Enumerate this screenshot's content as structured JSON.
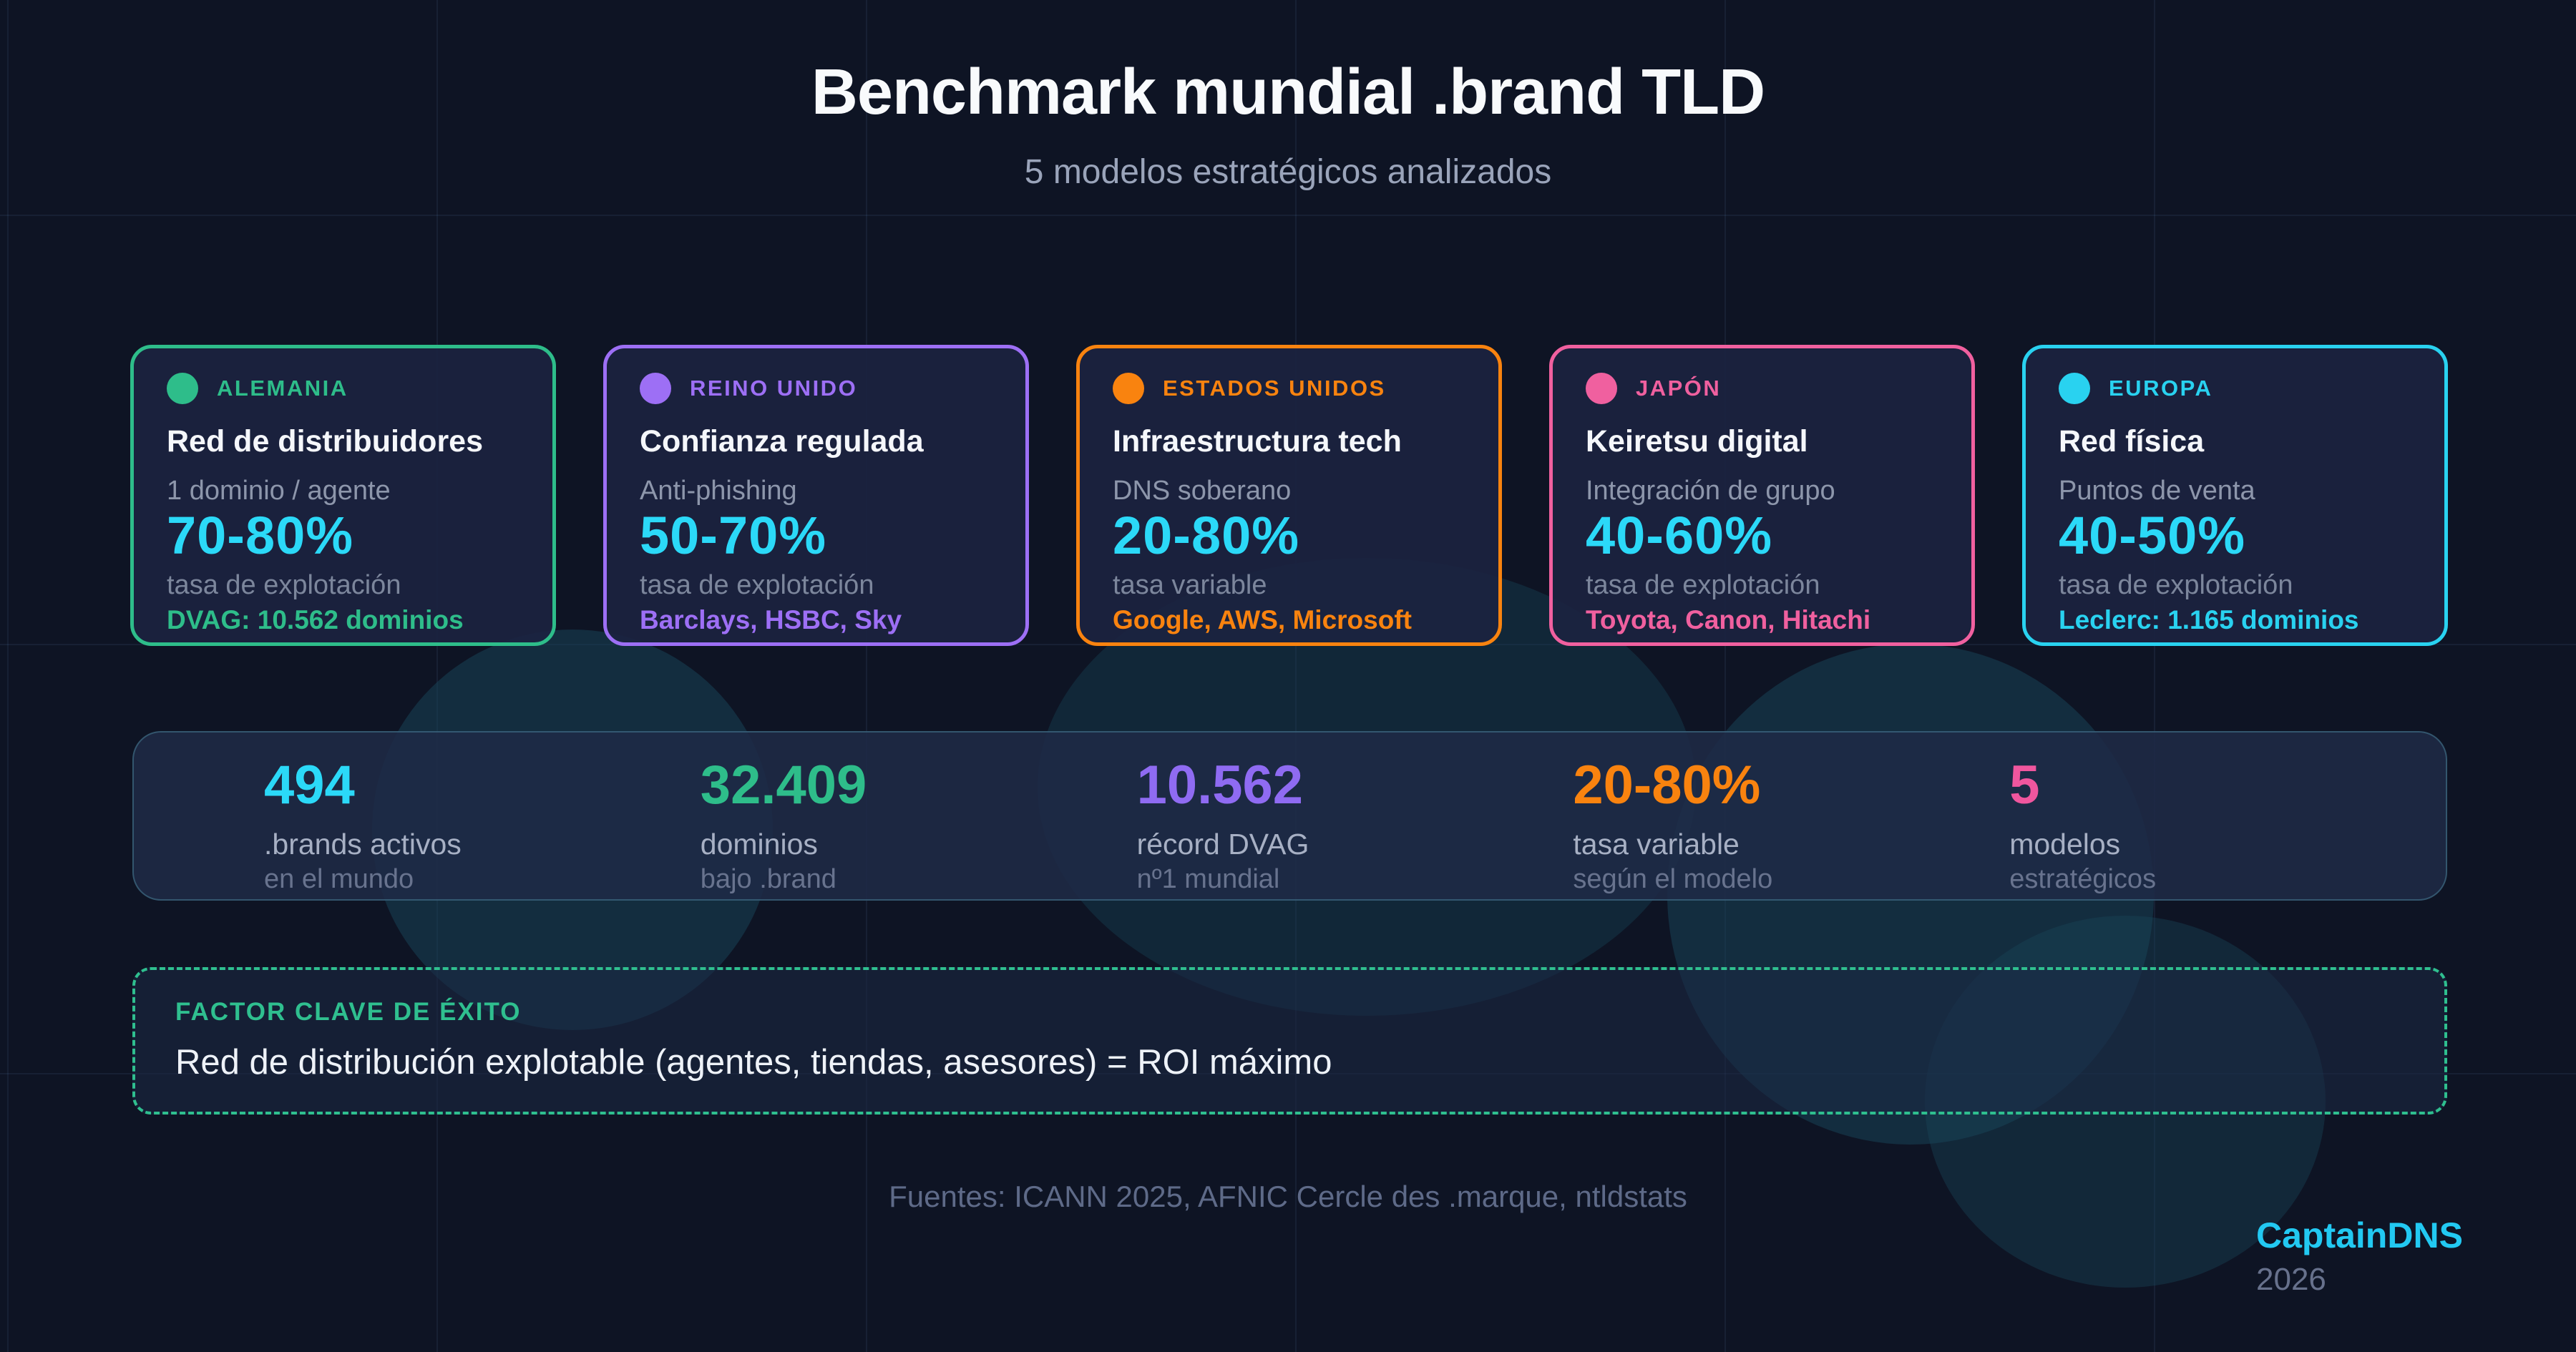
{
  "header": {
    "title": "Benchmark mundial .brand TLD",
    "subtitle": "5 modelos estratégicos analizados"
  },
  "cards": [
    {
      "country": "ALEMANIA",
      "accent": "#2ebd8a",
      "title": "Red de distribuidores",
      "subtitle": "1 dominio / agente",
      "metric": "70-80%",
      "metric_color": "#2bd9f8",
      "metric_label": "tasa de explotación",
      "footnote": "DVAG: 10.562 dominios"
    },
    {
      "country": "REINO UNIDO",
      "accent": "#9d6ff5",
      "title": "Confianza regulada",
      "subtitle": "Anti-phishing",
      "metric": "50-70%",
      "metric_color": "#2bd9f8",
      "metric_label": "tasa de explotación",
      "footnote": "Barclays, HSBC, Sky"
    },
    {
      "country": "ESTADOS UNIDOS",
      "accent": "#f9830f",
      "title": "Infraestructura tech",
      "subtitle": "DNS soberano",
      "metric": "20-80%",
      "metric_color": "#2bd9f8",
      "metric_label": "tasa variable",
      "footnote": "Google, AWS, Microsoft"
    },
    {
      "country": "JAPÓN",
      "accent": "#f0609f",
      "title": "Keiretsu digital",
      "subtitle": "Integración de grupo",
      "metric": "40-60%",
      "metric_color": "#2bd9f8",
      "metric_label": "tasa de explotación",
      "footnote": "Toyota, Canon, Hitachi"
    },
    {
      "country": "EUROPA",
      "accent": "#29d2f0",
      "title": "Red física",
      "subtitle": "Puntos de venta",
      "metric": "40-50%",
      "metric_color": "#2bd9f8",
      "metric_label": "tasa de explotación",
      "footnote": "Leclerc: 1.165 dominios"
    }
  ],
  "stats": [
    {
      "value": "494",
      "color": "#2bd9f8",
      "label": ".brands activos",
      "sublabel": "en el mundo"
    },
    {
      "value": "32.409",
      "color": "#2ebd8a",
      "label": "dominios",
      "sublabel": "bajo .brand"
    },
    {
      "value": "10.562",
      "color": "#8f6bf2",
      "label": "récord DVAG",
      "sublabel": "nº1 mundial"
    },
    {
      "value": "20-80%",
      "color": "#f9830f",
      "label": "tasa variable",
      "sublabel": "según el modelo"
    },
    {
      "value": "5",
      "color": "#f0569e",
      "label": "modelos",
      "sublabel": "estratégicos"
    }
  ],
  "key_factor": {
    "accent": "#2fbf8f",
    "label": "FACTOR CLAVE DE ÉXITO",
    "text": "Red de distribución explotable (agentes, tiendas, asesores) = ROI máximo"
  },
  "footer": {
    "sources": "Fuentes: ICANN 2025, AFNIC Cercle des .marque, ntldstats",
    "brand": "CaptainDNS",
    "brand_color": "#22c9f2",
    "year": "2026"
  }
}
